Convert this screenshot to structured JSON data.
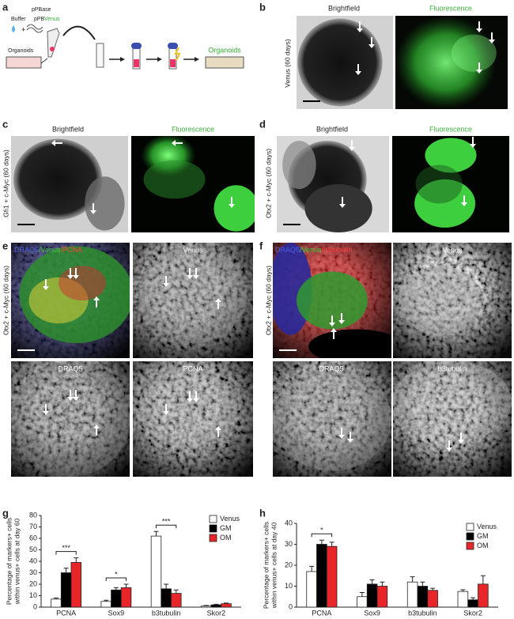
{
  "panels": {
    "a": {
      "letter": "a",
      "pPBase": "pPBase",
      "buffer": "Buffer",
      "pPB": "pPB",
      "venus": "Venus",
      "plus": "+",
      "organoids_in": "Organoids",
      "organoids_out": "Organoids"
    },
    "b": {
      "letter": "b",
      "left": "Brightfield",
      "right": "Fluorescence",
      "side": "Venus (60 days)"
    },
    "c": {
      "letter": "c",
      "left": "Brightfield",
      "right": "Fluorescence",
      "side": "Gfi1 + c-Myc (60 days)"
    },
    "d": {
      "letter": "d",
      "left": "Brightfield",
      "right": "Fluorescence",
      "side": "Otx2 + c-Myc (60 days)"
    },
    "e": {
      "letter": "e",
      "merge": [
        "DRAQ5",
        "/Venus",
        "/PCNA"
      ],
      "top_right": "Venus",
      "bottom_left": "DRAQ5",
      "bottom_right": "PCNA",
      "side": "Otx2 + c-Myc (60 days)"
    },
    "f": {
      "letter": "f",
      "merge": [
        "DRAQ5",
        "/Venus",
        "/b3tubulin"
      ],
      "top_right": "Venus",
      "bottom_left": "DRAQ5",
      "bottom_right": "b3tubulin",
      "side": "Otx2 + c-Myc (60 days)"
    }
  },
  "chart_data": [
    {
      "type": "bar",
      "label": "g",
      "ylabel": [
        "Percentage of markers+ cells",
        "within venus+ cells at day 60"
      ],
      "categories": [
        "PCNA",
        "Sox9",
        "b3tubulin",
        "Skor2"
      ],
      "series": [
        {
          "name": "Venus",
          "color": "#ffffff",
          "values": [
            7,
            5,
            62,
            1
          ],
          "errors": [
            1,
            1,
            4,
            0.5
          ]
        },
        {
          "name": "GM",
          "color": "#000000",
          "values": [
            30,
            15,
            16,
            2
          ],
          "errors": [
            4,
            2,
            4,
            0.5
          ]
        },
        {
          "name": "OM",
          "color": "#e8262a",
          "values": [
            39,
            17,
            12,
            3
          ],
          "errors": [
            4,
            3,
            3,
            0.5
          ]
        }
      ],
      "annotations": [
        "***",
        "*",
        "***"
      ],
      "ylim": [
        0,
        80
      ],
      "yticks": [
        0,
        10,
        20,
        30,
        40,
        50,
        60,
        70,
        80
      ],
      "legend": "upper right"
    },
    {
      "type": "bar",
      "label": "h",
      "ylabel": [
        "Percentage of markers+ cells",
        "within venus+ cells at day 40"
      ],
      "categories": [
        "PCNA",
        "Sox9",
        "b3tubulin",
        "Skor2"
      ],
      "series": [
        {
          "name": "Venus",
          "color": "#ffffff",
          "values": [
            17,
            5,
            12,
            7.5
          ],
          "errors": [
            2.5,
            2,
            2.5,
            0.8
          ]
        },
        {
          "name": "GM",
          "color": "#000000",
          "values": [
            30,
            11,
            10,
            3.5
          ],
          "errors": [
            2,
            2,
            2,
            1
          ]
        },
        {
          "name": "OM",
          "color": "#e8262a",
          "values": [
            29,
            10,
            8,
            11
          ],
          "errors": [
            2,
            2,
            1,
            4
          ]
        }
      ],
      "annotations": [
        "*"
      ],
      "ylim": [
        0,
        40
      ],
      "yticks": [
        0,
        10,
        20,
        30,
        40
      ],
      "legend": "upper right"
    }
  ]
}
